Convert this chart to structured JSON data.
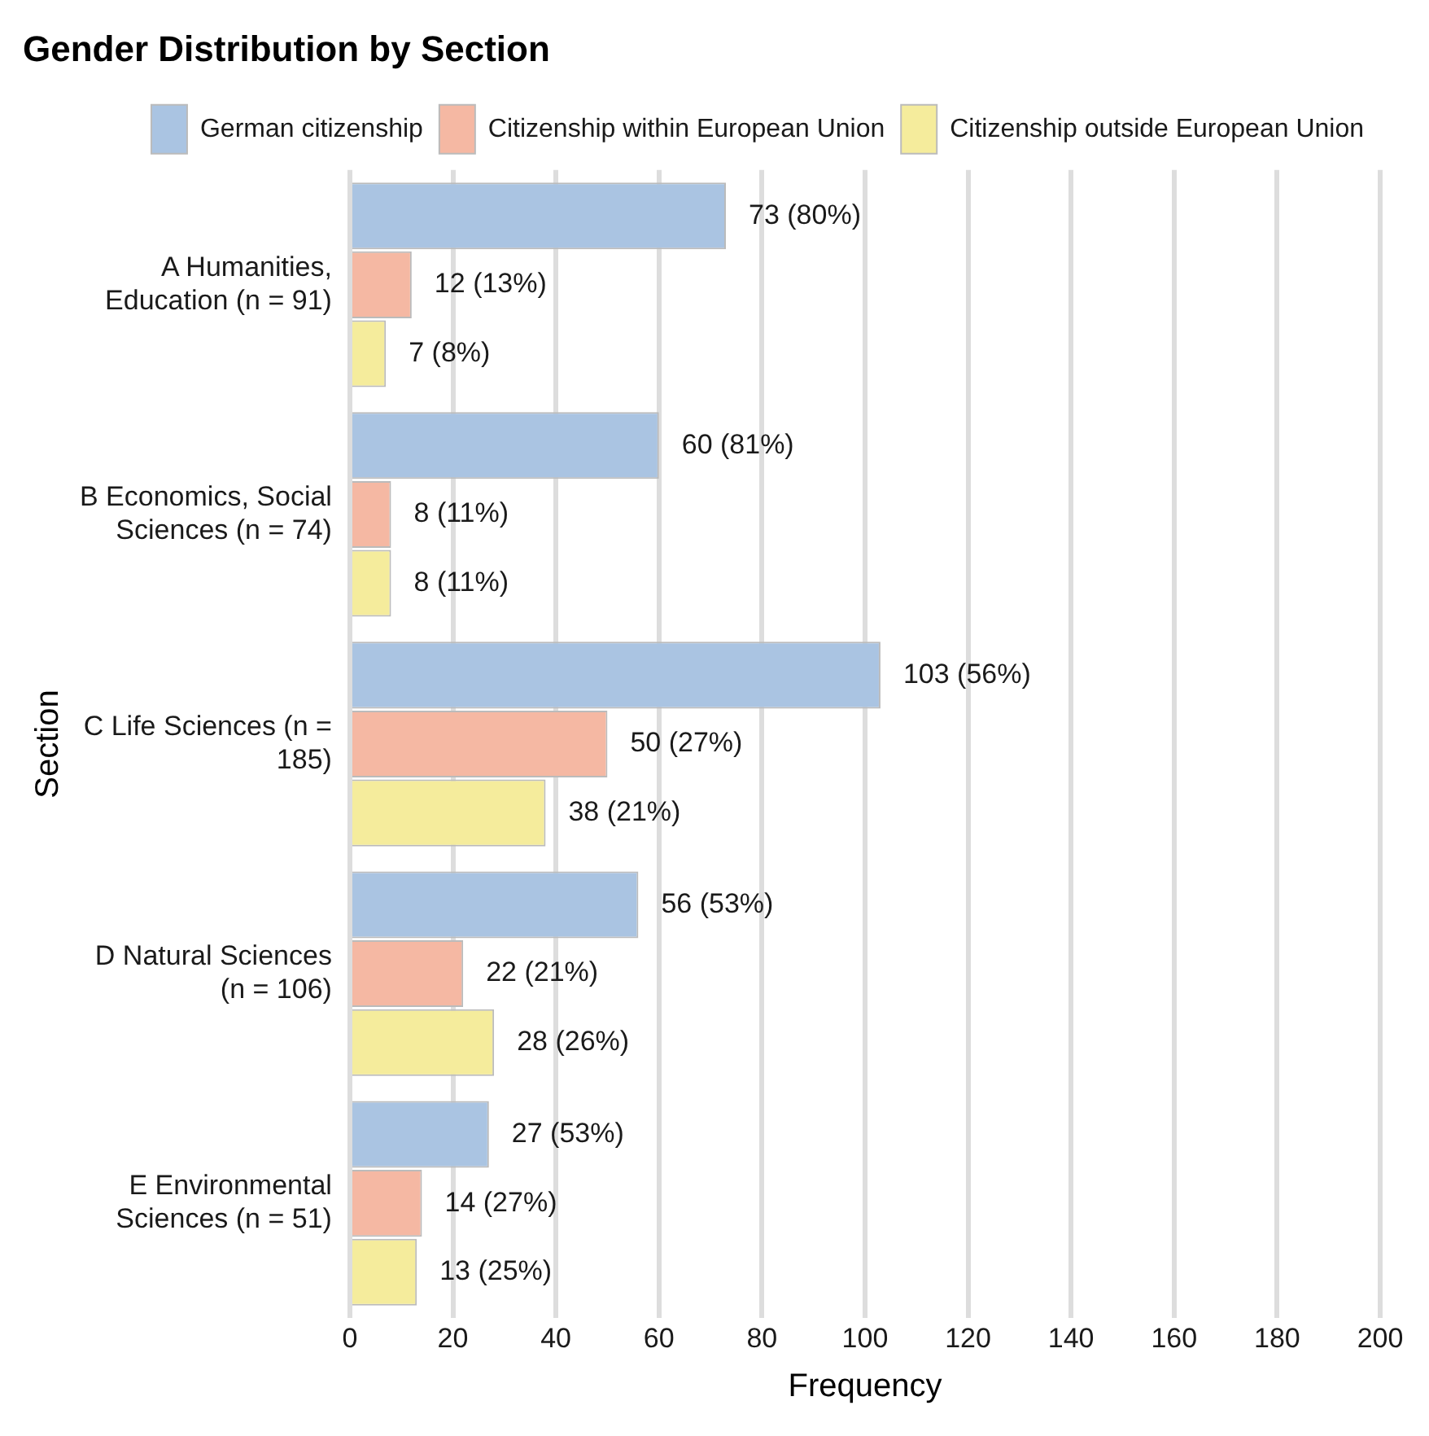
{
  "chart_data": {
    "type": "bar",
    "orientation": "horizontal",
    "title": "Gender Distribution by Section",
    "xlabel": "Frequency",
    "ylabel": "Section",
    "categories": [
      "A Humanities,\nEducation (n = 91)",
      "B Economics, Social\nSciences (n = 74)",
      "C Life Sciences (n =\n185)",
      "D Natural Sciences\n(n = 106)",
      "E Environmental\nSciences (n = 51)"
    ],
    "series": [
      {
        "name": "German citizenship",
        "color": "#aac4e2",
        "values": [
          73,
          60,
          103,
          56,
          27
        ],
        "value_labels": [
          "73 (80%)",
          "60 (81%)",
          "103 (56%)",
          "56 (53%)",
          "27 (53%)"
        ]
      },
      {
        "name": "Citizenship within European Union",
        "color": "#f5b8a3",
        "values": [
          12,
          8,
          50,
          22,
          14
        ],
        "value_labels": [
          "12 (13%)",
          "8 (11%)",
          "50 (27%)",
          "22 (21%)",
          "14 (27%)"
        ]
      },
      {
        "name": "Citizenship outside European Union",
        "color": "#f5ec9c",
        "values": [
          7,
          8,
          38,
          28,
          13
        ],
        "value_labels": [
          "7 (8%)",
          "8 (11%)",
          "38 (21%)",
          "28 (26%)",
          "13 (25%)"
        ]
      }
    ],
    "xlim": [
      0,
      200
    ],
    "xticks": [
      0,
      20,
      40,
      60,
      80,
      100,
      120,
      140,
      160,
      180,
      200
    ],
    "grid": "x",
    "legend": "top"
  }
}
